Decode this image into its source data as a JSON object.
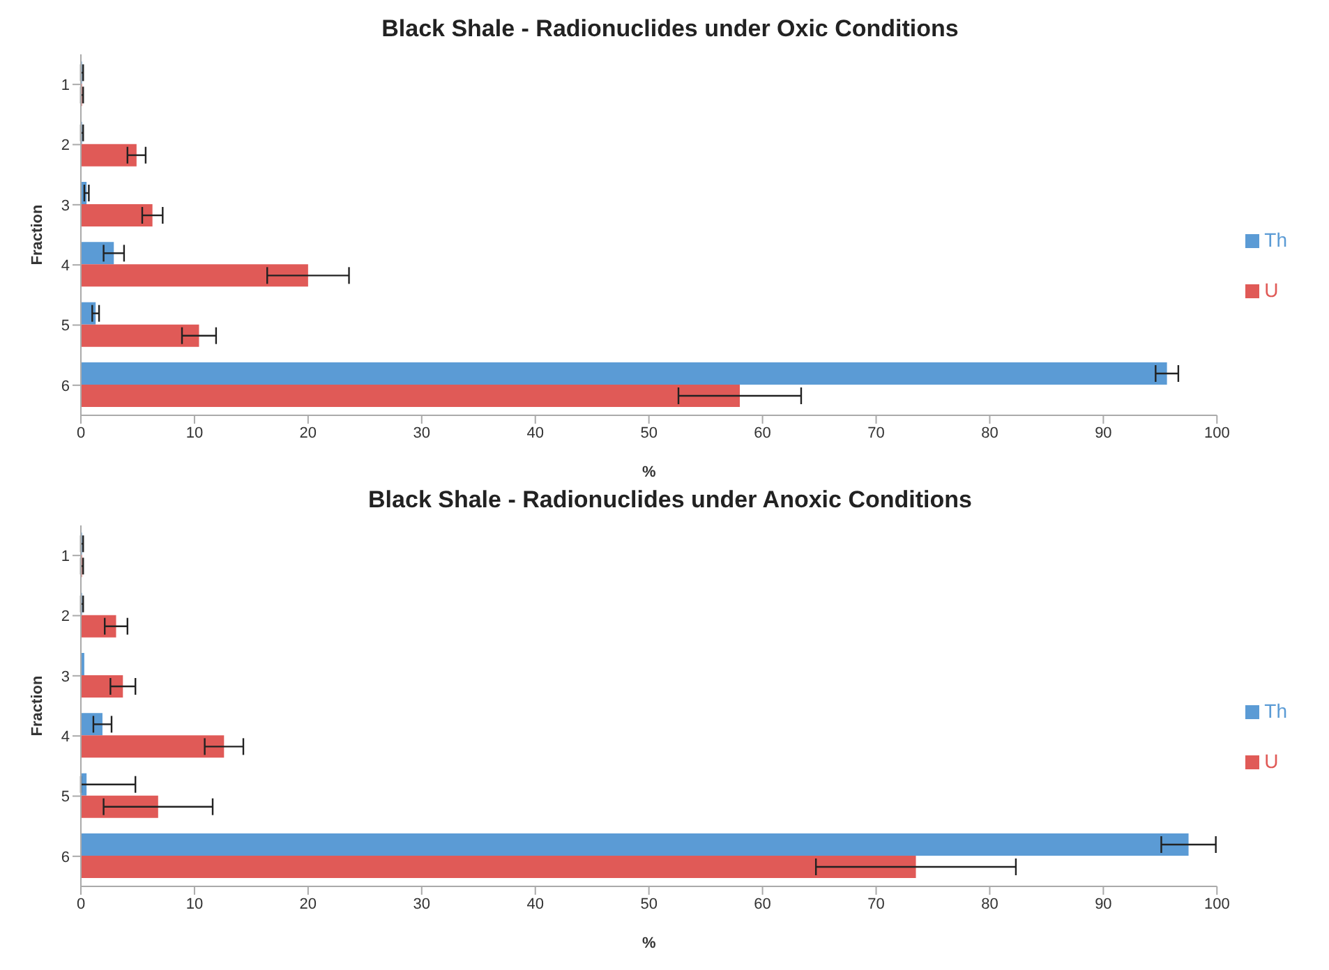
{
  "chart_data": [
    {
      "type": "bar",
      "orientation": "horizontal",
      "title": "Black Shale - Radionuclides under Oxic Conditions",
      "xlabel": "%",
      "ylabel": "Fraction",
      "categories": [
        "1",
        "2",
        "3",
        "4",
        "5",
        "6"
      ],
      "xlim": [
        0,
        100
      ],
      "xticks": [
        0,
        10,
        20,
        30,
        40,
        50,
        60,
        70,
        80,
        90,
        100
      ],
      "legend": "right",
      "grid": false,
      "series": [
        {
          "name": "Th",
          "color": "#5b9bd5",
          "values": [
            0.1,
            0.1,
            0.5,
            2.9,
            1.3,
            95.6
          ],
          "errors": [
            0.1,
            0.1,
            0.2,
            0.9,
            0.3,
            1
          ]
        },
        {
          "name": "U",
          "color": "#e05a57",
          "values": [
            0.1,
            4.9,
            6.3,
            20,
            10.4,
            58
          ],
          "errors": [
            0.1,
            0.8,
            0.9,
            3.6,
            1.5,
            5.4
          ]
        }
      ]
    },
    {
      "type": "bar",
      "orientation": "horizontal",
      "title": "Black Shale - Radionuclides under Anoxic Conditions",
      "xlabel": "%",
      "ylabel": "Fraction",
      "categories": [
        "1",
        "2",
        "3",
        "4",
        "5",
        "6"
      ],
      "xlim": [
        0,
        100
      ],
      "xticks": [
        0,
        10,
        20,
        30,
        40,
        50,
        60,
        70,
        80,
        90,
        100
      ],
      "legend": "right",
      "grid": false,
      "series": [
        {
          "name": "Th",
          "color": "#5b9bd5",
          "values": [
            0.1,
            0.1,
            0.3,
            1.9,
            0.5,
            97.5
          ],
          "errors": [
            0.1,
            0.1,
            null,
            0.8,
            [
              0,
              4.8
            ],
            2.4
          ]
        },
        {
          "name": "U",
          "color": "#e05a57",
          "values": [
            0.1,
            3.1,
            3.7,
            12.6,
            6.8,
            73.5
          ],
          "errors": [
            0.1,
            1,
            1.1,
            1.7,
            4.8,
            8.8
          ]
        }
      ]
    }
  ]
}
